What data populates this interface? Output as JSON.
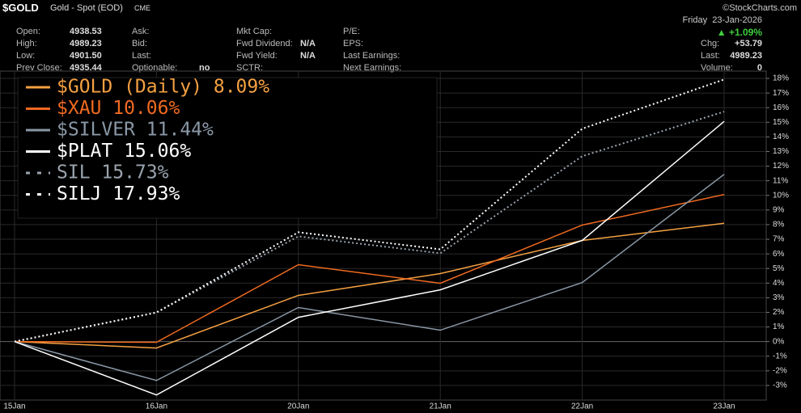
{
  "header": {
    "symbol": "$GOLD",
    "name": "Gold - Spot (EOD)",
    "exchange": "CME",
    "watermark": "©StockCharts.com",
    "date": "Friday  23-Jan-2026",
    "change_pct": "▲ +1.09%",
    "columns": [
      [
        {
          "label": "Open:",
          "value": "4938.53"
        },
        {
          "label": "High:",
          "value": "4989.23"
        },
        {
          "label": "Low:",
          "value": "4901.50"
        },
        {
          "label": "Prev Close:",
          "value": "4935.44"
        }
      ],
      [
        {
          "label": "Ask:"
        },
        {
          "label": "Bid:"
        },
        {
          "label": "Last:"
        },
        {
          "label": "Optionable:",
          "value": "no"
        }
      ],
      [
        {
          "label": "Mkt Cap:"
        },
        {
          "label": "Fwd Dividend:",
          "value": "N/A"
        },
        {
          "label": "Fwd Yield:",
          "value": "N/A"
        },
        {
          "label": "SCTR:"
        }
      ],
      [
        {
          "label": "P/E:"
        },
        {
          "label": "EPS:"
        },
        {
          "label": "Last Earnings:"
        },
        {
          "label": "Next Earnings:"
        }
      ]
    ],
    "right": [
      {
        "label": "Chg:",
        "value": "+53.79"
      },
      {
        "label": "Last:",
        "value": "4989.23"
      },
      {
        "label": "Volume:",
        "value": "0"
      }
    ]
  },
  "chart_data": {
    "type": "line",
    "categories": [
      "15Jan",
      "16Jan",
      "20Jan",
      "21Jan",
      "22Jan",
      "23Jan"
    ],
    "series": [
      {
        "name": "$GOLD (Daily) 8.09%",
        "color": "#f5a142",
        "dash": false,
        "values": [
          0,
          -0.44,
          3.16,
          4.65,
          6.92,
          8.09
        ]
      },
      {
        "name": "$XAU 10.06%",
        "color": "#f06a20",
        "dash": false,
        "values": [
          0,
          -0.05,
          5.26,
          3.99,
          7.97,
          10.06
        ]
      },
      {
        "name": "$SILVER 11.44%",
        "color": "#8a98a6",
        "dash": false,
        "values": [
          0,
          -2.66,
          2.33,
          0.78,
          4.04,
          11.44
        ]
      },
      {
        "name": "$PLAT 15.06%",
        "color": "#ffffff",
        "dash": false,
        "values": [
          0,
          -3.65,
          1.66,
          3.54,
          6.92,
          15.06
        ]
      },
      {
        "name": "SIL 15.73%",
        "color": "#9aa4ae",
        "dash": true,
        "values": [
          0,
          1.99,
          7.2,
          6.04,
          12.68,
          15.73
        ]
      },
      {
        "name": "SILJ 17.93%",
        "color": "#ffffff",
        "dash": true,
        "values": [
          0,
          1.99,
          7.48,
          6.31,
          14.56,
          17.93
        ]
      }
    ],
    "ylim": [
      -4,
      18.5
    ],
    "yticks": [
      {
        "value": -3,
        "label": "-3%"
      },
      {
        "value": -2,
        "label": "-2%"
      },
      {
        "value": -1,
        "label": "-1%"
      },
      {
        "value": 0,
        "label": "0%"
      },
      {
        "value": 1,
        "label": "1%"
      },
      {
        "value": 2,
        "label": "2%"
      },
      {
        "value": 3,
        "label": "3%"
      },
      {
        "value": 4,
        "label": "4%"
      },
      {
        "value": 5,
        "label": "5%"
      },
      {
        "value": 6,
        "label": "6%"
      },
      {
        "value": 7,
        "label": "7%"
      },
      {
        "value": 8,
        "label": "8%"
      },
      {
        "value": 9,
        "label": "9%"
      },
      {
        "value": 10,
        "label": "10%"
      },
      {
        "value": 11,
        "label": "11%"
      },
      {
        "value": 12,
        "label": "12%"
      },
      {
        "value": 13,
        "label": "13%"
      },
      {
        "value": 14,
        "label": "14%"
      },
      {
        "value": 15,
        "label": "15%"
      },
      {
        "value": 16,
        "label": "16%"
      },
      {
        "value": 17,
        "label": "17%"
      },
      {
        "value": 18,
        "label": "18%"
      }
    ],
    "grid": true
  }
}
